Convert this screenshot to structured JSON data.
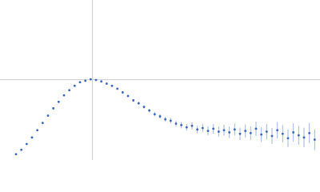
{
  "chart_data": {
    "type": "scatter",
    "xlim": [
      0,
      6
    ],
    "ylim": [
      0,
      2.2
    ],
    "reference_lines": {
      "x": 1.732,
      "y": 1.104,
      "color": "#cccccc"
    },
    "error_color": "#9fb6e6",
    "series": [
      {
        "color": "#3a64b8",
        "x": [
          0.3,
          0.4,
          0.5,
          0.6,
          0.7,
          0.8,
          0.9,
          1.0,
          1.1,
          1.2,
          1.3,
          1.4,
          1.5,
          1.6,
          1.7,
          1.8,
          1.9,
          2.0,
          2.1,
          2.2,
          2.3,
          2.4,
          2.5,
          2.6,
          2.7,
          2.8,
          2.9,
          3.0,
          3.1,
          3.2,
          3.3,
          3.4,
          3.5,
          3.6,
          3.7,
          3.8,
          3.9,
          4.0,
          4.1,
          4.2,
          4.3,
          4.4,
          4.5,
          4.6,
          4.7,
          4.8,
          4.9,
          5.0,
          5.1,
          5.2,
          5.3,
          5.4,
          5.5,
          5.6,
          5.7,
          5.8,
          5.9
        ],
        "values": [
          0.08,
          0.14,
          0.22,
          0.31,
          0.41,
          0.51,
          0.61,
          0.71,
          0.8,
          0.89,
          0.96,
          1.02,
          1.07,
          1.09,
          1.11,
          1.1,
          1.08,
          1.05,
          1.02,
          0.98,
          0.93,
          0.88,
          0.82,
          0.78,
          0.73,
          0.68,
          0.63,
          0.6,
          0.56,
          0.54,
          0.5,
          0.48,
          0.45,
          0.47,
          0.42,
          0.44,
          0.4,
          0.43,
          0.39,
          0.41,
          0.38,
          0.42,
          0.36,
          0.4,
          0.37,
          0.43,
          0.35,
          0.39,
          0.33,
          0.41,
          0.36,
          0.3,
          0.38,
          0.34,
          0.31,
          0.37,
          0.28
        ],
        "errors": [
          0.005,
          0.005,
          0.005,
          0.005,
          0.005,
          0.005,
          0.005,
          0.005,
          0.005,
          0.005,
          0.006,
          0.006,
          0.007,
          0.008,
          0.009,
          0.01,
          0.011,
          0.012,
          0.013,
          0.014,
          0.015,
          0.017,
          0.019,
          0.021,
          0.023,
          0.025,
          0.028,
          0.031,
          0.034,
          0.037,
          0.04,
          0.043,
          0.046,
          0.05,
          0.054,
          0.058,
          0.062,
          0.066,
          0.07,
          0.074,
          0.078,
          0.082,
          0.086,
          0.09,
          0.094,
          0.098,
          0.102,
          0.106,
          0.11,
          0.114,
          0.118,
          0.122,
          0.126,
          0.13,
          0.134,
          0.138,
          0.142
        ]
      }
    ]
  }
}
